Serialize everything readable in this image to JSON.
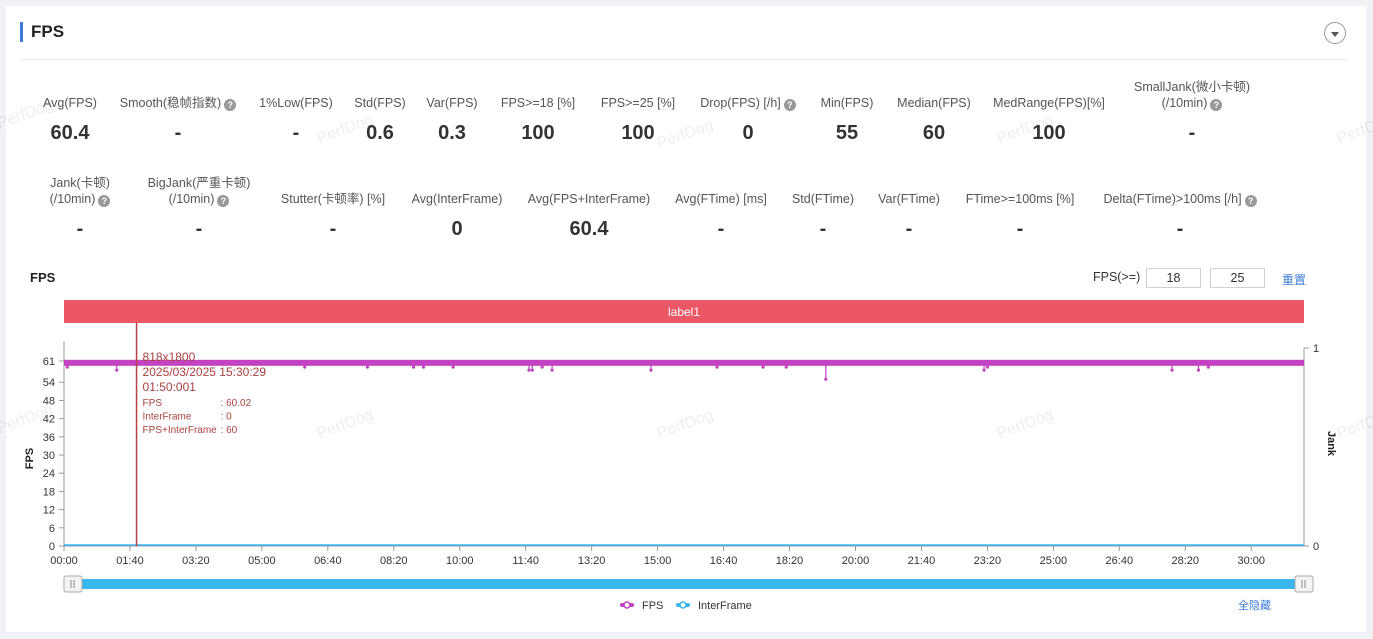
{
  "panel": {
    "title": "FPS"
  },
  "metrics_row1": [
    {
      "label": "Avg(FPS)",
      "value": "60.4",
      "help": false
    },
    {
      "label": "Smooth(稳帧指数)",
      "value": "-",
      "help": true
    },
    {
      "label": "1%Low(FPS)",
      "value": "-",
      "help": false
    },
    {
      "label": "Std(FPS)",
      "value": "0.6",
      "help": false
    },
    {
      "label": "Var(FPS)",
      "value": "0.3",
      "help": false
    },
    {
      "label": "FPS>=18 [%]",
      "value": "100",
      "help": false
    },
    {
      "label": "FPS>=25 [%]",
      "value": "100",
      "help": false
    },
    {
      "label": "Drop(FPS) [/h]",
      "value": "0",
      "help": true
    },
    {
      "label": "Min(FPS)",
      "value": "55",
      "help": false
    },
    {
      "label": "Median(FPS)",
      "value": "60",
      "help": false
    },
    {
      "label": "MedRange(FPS)[%]",
      "value": "100",
      "help": false
    },
    {
      "label": "SmallJank(微小卡顿)",
      "label2": "(/10min)",
      "value": "-",
      "help": true
    }
  ],
  "metrics_row2": [
    {
      "label": "Jank(卡顿)",
      "label2": "(/10min)",
      "value": "-",
      "help": true
    },
    {
      "label": "BigJank(严重卡顿)",
      "label2": "(/10min)",
      "value": "-",
      "help": true
    },
    {
      "label": "Stutter(卡顿率) [%]",
      "value": "-",
      "help": false
    },
    {
      "label": "Avg(InterFrame)",
      "value": "0",
      "help": false
    },
    {
      "label": "Avg(FPS+InterFrame)",
      "value": "60.4",
      "help": false
    },
    {
      "label": "Avg(FTime) [ms]",
      "value": "-",
      "help": false
    },
    {
      "label": "Std(FTime)",
      "value": "-",
      "help": false
    },
    {
      "label": "Var(FTime)",
      "value": "-",
      "help": false
    },
    {
      "label": "FTime>=100ms [%]",
      "value": "-",
      "help": false
    },
    {
      "label": "Delta(FTime)>100ms [/h]",
      "value": "-",
      "help": true
    }
  ],
  "chart_controls": {
    "title": "FPS",
    "threshold_label": "FPS(>=)",
    "threshold1": "18",
    "threshold2": "25",
    "reset_label": "重置",
    "hide_all_label": "全隐藏"
  },
  "watermark": "PerfDog",
  "tooltip": {
    "resolution": "818x1800",
    "datetime": "2025/03/2025 15:30:29",
    "elapsed": "01:50:001",
    "lines": [
      {
        "key": "FPS",
        "sep": ": 60.02"
      },
      {
        "key": "InterFrame",
        "sep": ": 0"
      },
      {
        "key": "FPS+InterFrame",
        "sep": ": 60"
      }
    ]
  },
  "chart_data": {
    "type": "line",
    "label_band": "label1",
    "xlabel": "",
    "ylabel": "FPS",
    "ylabel_right": "Jank",
    "ylim": [
      0,
      61
    ],
    "yticks": [
      0,
      6,
      12,
      18,
      24,
      30,
      36,
      42,
      48,
      54,
      61
    ],
    "yticks_right": [
      0,
      1
    ],
    "x_ticks": [
      "00:00",
      "01:40",
      "03:20",
      "05:00",
      "06:40",
      "08:20",
      "10:00",
      "11:40",
      "13:20",
      "15:00",
      "16:40",
      "18:20",
      "20:00",
      "21:40",
      "23:20",
      "25:00",
      "26:40",
      "28:20",
      "30:00"
    ],
    "x_range_seconds": [
      0,
      1880
    ],
    "cursor_time_seconds": 110,
    "fps_baseline": 60.4,
    "fps_dips": [
      {
        "t": 5,
        "v": 59
      },
      {
        "t": 80,
        "v": 58
      },
      {
        "t": 365,
        "v": 59
      },
      {
        "t": 460,
        "v": 59
      },
      {
        "t": 530,
        "v": 59
      },
      {
        "t": 545,
        "v": 59
      },
      {
        "t": 590,
        "v": 59
      },
      {
        "t": 705,
        "v": 58
      },
      {
        "t": 710,
        "v": 58
      },
      {
        "t": 725,
        "v": 59
      },
      {
        "t": 740,
        "v": 58
      },
      {
        "t": 890,
        "v": 58
      },
      {
        "t": 990,
        "v": 59
      },
      {
        "t": 1060,
        "v": 59
      },
      {
        "t": 1095,
        "v": 59
      },
      {
        "t": 1155,
        "v": 55
      },
      {
        "t": 1395,
        "v": 58
      },
      {
        "t": 1400,
        "v": 59
      },
      {
        "t": 1680,
        "v": 58
      },
      {
        "t": 1720,
        "v": 58
      },
      {
        "t": 1735,
        "v": 59
      }
    ],
    "series": [
      {
        "name": "FPS",
        "color": "#c242c2"
      },
      {
        "name": "InterFrame",
        "color": "#3ab6ee"
      }
    ],
    "legend_position": "bottom-center"
  },
  "colors": {
    "accent": "#3e7bd9",
    "label_band": "#ec5766",
    "fps": "#c242c2",
    "interframe": "#3ab6ee",
    "cursor": "#b84047"
  }
}
